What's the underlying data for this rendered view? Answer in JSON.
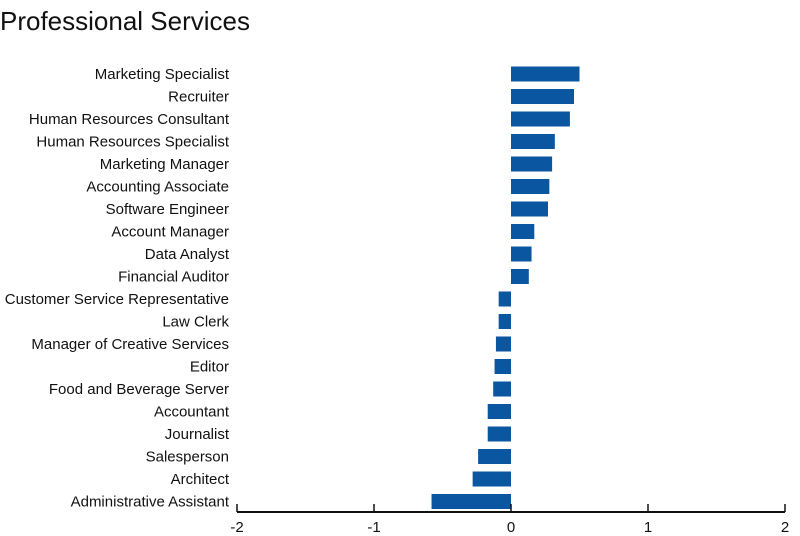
{
  "chart_data": {
    "type": "bar",
    "orientation": "horizontal",
    "title": "Professional Services",
    "xlabel": "",
    "ylabel": "",
    "xlim": [
      -2,
      2
    ],
    "xticks": [
      "-2",
      "-1",
      "0",
      "1",
      "2"
    ],
    "grid": false,
    "bar_color": "#0a56a0",
    "categories": [
      "Marketing Specialist",
      "Recruiter",
      "Human Resources Consultant",
      "Human Resources Specialist",
      "Marketing Manager",
      "Accounting Associate",
      "Software Engineer",
      "Account Manager",
      "Data Analyst",
      "Financial Auditor",
      "Customer Service Representative",
      "Law Clerk",
      "Manager of Creative Services",
      "Editor",
      "Food and Beverage Server",
      "Accountant",
      "Journalist",
      "Salesperson",
      "Architect",
      "Administrative Assistant"
    ],
    "values": [
      0.5,
      0.46,
      0.43,
      0.32,
      0.3,
      0.28,
      0.27,
      0.17,
      0.15,
      0.13,
      -0.09,
      -0.09,
      -0.11,
      -0.12,
      -0.13,
      -0.17,
      -0.17,
      -0.24,
      -0.28,
      -0.58
    ]
  }
}
